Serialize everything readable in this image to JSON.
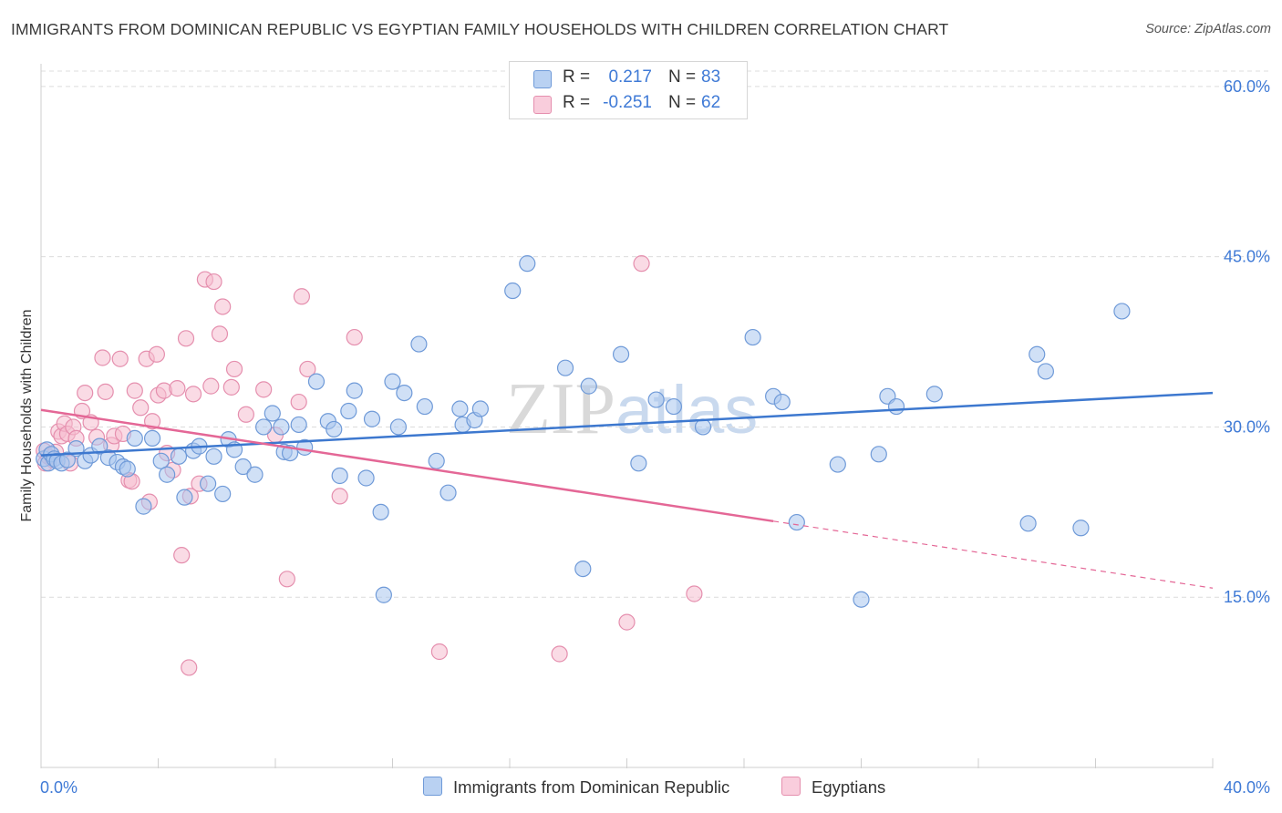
{
  "title": "IMMIGRANTS FROM DOMINICAN REPUBLIC VS EGYPTIAN FAMILY HOUSEHOLDS WITH CHILDREN CORRELATION CHART",
  "source": "Source: ZipAtlas.com",
  "watermark": {
    "zip": "ZIP",
    "atlas": "atlas"
  },
  "legend_top": {
    "rows": [
      {
        "r_label": "R =",
        "r_value": "0.217",
        "n_label": "N =",
        "n_value": "83"
      },
      {
        "r_label": "R =",
        "r_value": "-0.251",
        "n_label": "N =",
        "n_value": "62"
      }
    ]
  },
  "legend_bottom": [
    "Immigrants from Dominican Republic",
    "Egyptians"
  ],
  "colors": {
    "blue_fill": "#a9c6ee",
    "blue_stroke": "#6f9ad8",
    "blue_line": "#3d78cf",
    "pink_fill": "#f6bdd0",
    "pink_stroke": "#e58fae",
    "pink_line": "#e46796",
    "tick_text": "#3f7ad6",
    "grid": "#dcdcdc"
  },
  "chart_data": {
    "type": "scatter",
    "title": "IMMIGRANTS FROM DOMINICAN REPUBLIC VS EGYPTIAN FAMILY HOUSEHOLDS WITH CHILDREN CORRELATION CHART",
    "xlabel": "",
    "ylabel": "Family Households with Children",
    "xlim": [
      0,
      40
    ],
    "ylim": [
      0,
      62
    ],
    "x_tick_labels": [
      "0.0%",
      "40.0%"
    ],
    "y_ticks": [
      15,
      30,
      45,
      60
    ],
    "y_tick_labels": [
      "15.0%",
      "30.0%",
      "45.0%",
      "60.0%"
    ],
    "grid": "horizontal dashed",
    "legend_placement": "bottom",
    "series": [
      {
        "name": "Immigrants from Dominican Republic",
        "R": 0.217,
        "N": 83,
        "trend": {
          "x0": 0,
          "y0": 27.5,
          "x1": 40,
          "y1": 33.0
        },
        "points": [
          [
            0.1,
            27.2
          ],
          [
            0.2,
            28.0
          ],
          [
            0.25,
            26.8
          ],
          [
            0.35,
            27.6
          ],
          [
            0.45,
            27.2
          ],
          [
            0.55,
            27.0
          ],
          [
            0.7,
            26.8
          ],
          [
            0.9,
            27.1
          ],
          [
            1.2,
            28.1
          ],
          [
            1.5,
            27.0
          ],
          [
            1.7,
            27.5
          ],
          [
            2.0,
            28.3
          ],
          [
            2.3,
            27.3
          ],
          [
            2.6,
            26.9
          ],
          [
            2.8,
            26.5
          ],
          [
            2.95,
            26.3
          ],
          [
            3.2,
            29.0
          ],
          [
            3.5,
            23.0
          ],
          [
            3.8,
            29.0
          ],
          [
            4.1,
            27.0
          ],
          [
            4.3,
            25.8
          ],
          [
            4.7,
            27.4
          ],
          [
            4.9,
            23.8
          ],
          [
            5.2,
            27.9
          ],
          [
            5.4,
            28.3
          ],
          [
            5.7,
            25.0
          ],
          [
            5.9,
            27.4
          ],
          [
            6.2,
            24.1
          ],
          [
            6.4,
            28.9
          ],
          [
            6.6,
            28.0
          ],
          [
            6.9,
            26.5
          ],
          [
            7.3,
            25.8
          ],
          [
            7.6,
            30.0
          ],
          [
            7.9,
            31.2
          ],
          [
            8.2,
            30.0
          ],
          [
            8.3,
            27.8
          ],
          [
            8.5,
            27.7
          ],
          [
            8.8,
            30.2
          ],
          [
            9.0,
            28.2
          ],
          [
            9.4,
            34.0
          ],
          [
            9.8,
            30.5
          ],
          [
            10.0,
            29.8
          ],
          [
            10.2,
            25.7
          ],
          [
            10.5,
            31.4
          ],
          [
            10.7,
            33.2
          ],
          [
            11.1,
            25.5
          ],
          [
            11.3,
            30.7
          ],
          [
            11.6,
            22.5
          ],
          [
            11.7,
            15.2
          ],
          [
            12.0,
            34.0
          ],
          [
            12.2,
            30.0
          ],
          [
            12.4,
            33.0
          ],
          [
            12.9,
            37.3
          ],
          [
            13.1,
            31.8
          ],
          [
            13.5,
            27.0
          ],
          [
            13.9,
            24.2
          ],
          [
            14.3,
            31.6
          ],
          [
            14.4,
            30.2
          ],
          [
            14.8,
            30.6
          ],
          [
            15.0,
            31.6
          ],
          [
            16.1,
            42.0
          ],
          [
            16.6,
            44.4
          ],
          [
            17.9,
            35.2
          ],
          [
            18.5,
            17.5
          ],
          [
            18.7,
            33.6
          ],
          [
            19.8,
            36.4
          ],
          [
            20.4,
            26.8
          ],
          [
            21.0,
            32.4
          ],
          [
            21.6,
            31.8
          ],
          [
            22.6,
            30.0
          ],
          [
            24.3,
            37.9
          ],
          [
            25.0,
            32.7
          ],
          [
            25.3,
            32.2
          ],
          [
            25.8,
            21.6
          ],
          [
            27.2,
            26.7
          ],
          [
            28.0,
            14.8
          ],
          [
            28.6,
            27.6
          ],
          [
            28.9,
            32.7
          ],
          [
            29.2,
            31.8
          ],
          [
            30.5,
            32.9
          ],
          [
            33.7,
            21.5
          ],
          [
            34.0,
            36.4
          ],
          [
            34.3,
            34.9
          ],
          [
            35.5,
            21.1
          ],
          [
            36.9,
            40.2
          ]
        ]
      },
      {
        "name": "Egyptians",
        "R": -0.251,
        "N": 62,
        "trend": {
          "x0": 0,
          "y0": 31.5,
          "x1": 25.0,
          "y1": 21.7,
          "x_dash_end": 40,
          "y_dash_end": 15.8
        },
        "points": [
          [
            0.1,
            27.9
          ],
          [
            0.15,
            26.8
          ],
          [
            0.25,
            27.4
          ],
          [
            0.4,
            27.1
          ],
          [
            0.5,
            27.8
          ],
          [
            0.6,
            29.6
          ],
          [
            0.7,
            29.2
          ],
          [
            0.8,
            30.3
          ],
          [
            0.9,
            29.4
          ],
          [
            1.0,
            26.8
          ],
          [
            1.1,
            30.0
          ],
          [
            1.2,
            29.0
          ],
          [
            1.4,
            31.4
          ],
          [
            1.5,
            33.0
          ],
          [
            1.7,
            30.4
          ],
          [
            1.9,
            29.1
          ],
          [
            2.1,
            36.1
          ],
          [
            2.2,
            33.1
          ],
          [
            2.4,
            28.4
          ],
          [
            2.5,
            29.2
          ],
          [
            2.7,
            36.0
          ],
          [
            2.8,
            29.4
          ],
          [
            3.0,
            25.3
          ],
          [
            3.1,
            25.2
          ],
          [
            3.2,
            33.2
          ],
          [
            3.4,
            31.7
          ],
          [
            3.6,
            36.0
          ],
          [
            3.7,
            23.4
          ],
          [
            3.8,
            30.5
          ],
          [
            3.95,
            36.4
          ],
          [
            4.0,
            32.8
          ],
          [
            4.2,
            33.2
          ],
          [
            4.3,
            27.7
          ],
          [
            4.5,
            26.2
          ],
          [
            4.65,
            33.4
          ],
          [
            4.8,
            18.7
          ],
          [
            4.95,
            37.8
          ],
          [
            5.05,
            8.8
          ],
          [
            5.1,
            23.9
          ],
          [
            5.2,
            32.9
          ],
          [
            5.4,
            25.0
          ],
          [
            5.6,
            43.0
          ],
          [
            5.8,
            33.6
          ],
          [
            5.9,
            42.8
          ],
          [
            6.1,
            38.2
          ],
          [
            6.2,
            40.6
          ],
          [
            6.5,
            33.5
          ],
          [
            6.6,
            35.1
          ],
          [
            7.0,
            31.1
          ],
          [
            7.6,
            33.3
          ],
          [
            8.0,
            29.3
          ],
          [
            8.4,
            16.6
          ],
          [
            8.8,
            32.2
          ],
          [
            8.9,
            41.5
          ],
          [
            9.1,
            35.1
          ],
          [
            10.2,
            23.9
          ],
          [
            10.7,
            37.9
          ],
          [
            13.6,
            10.2
          ],
          [
            17.7,
            10.0
          ],
          [
            20.0,
            12.8
          ],
          [
            20.5,
            44.4
          ],
          [
            22.3,
            15.3
          ]
        ]
      }
    ]
  }
}
